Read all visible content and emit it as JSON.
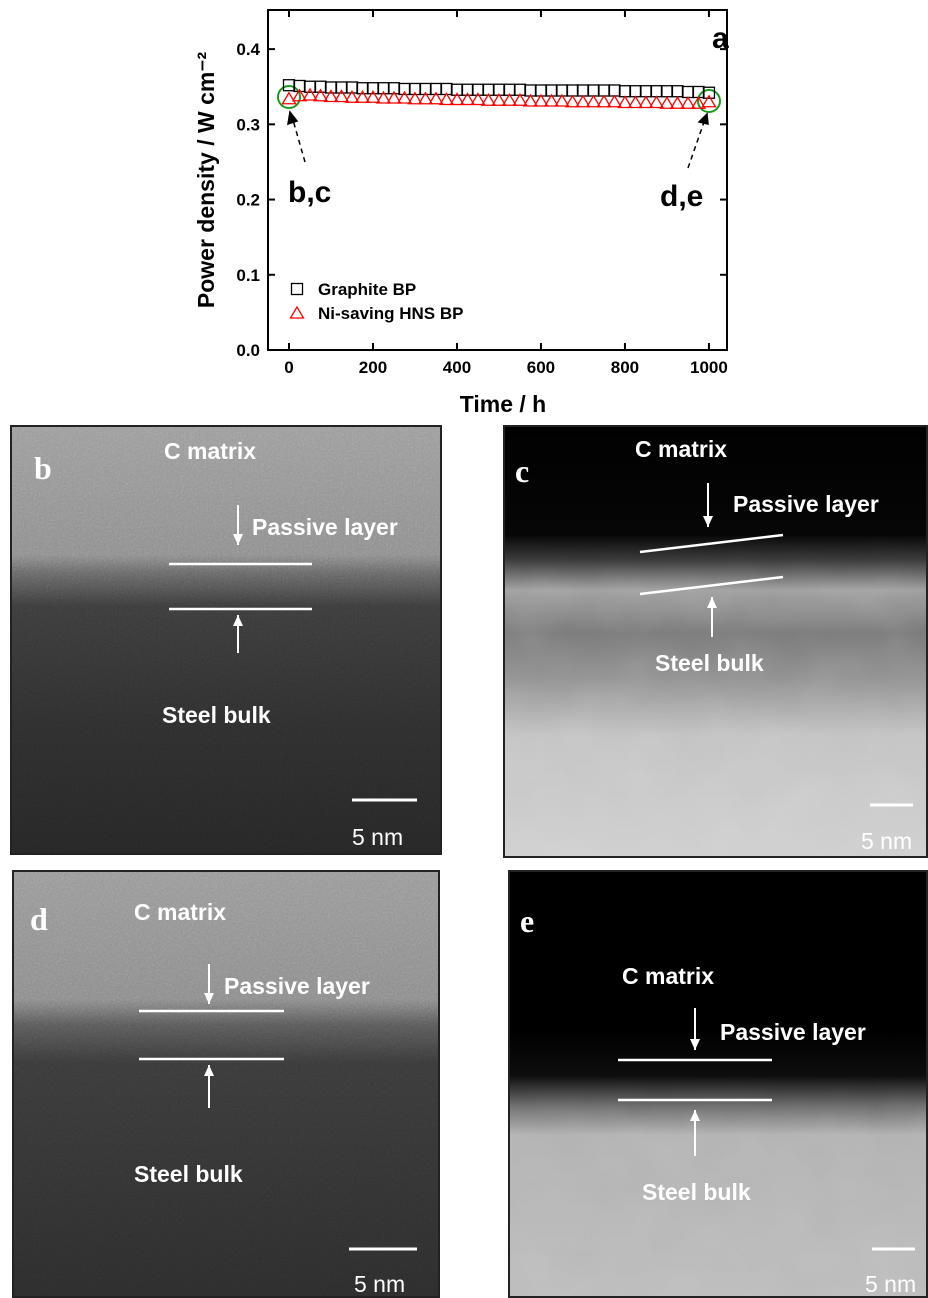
{
  "chart_data": {
    "type": "scatter",
    "x_label": "Time / h",
    "y_label": "Power density  /  W cm⁻²",
    "annotations": [
      "a",
      "b,c",
      "d,e"
    ],
    "xlim": [
      -50,
      1043
    ],
    "ylim": [
      0,
      0.452
    ],
    "xticks": [
      0,
      200,
      400,
      600,
      800,
      1000
    ],
    "yticks": [
      {
        "value": 0,
        "label": "0.0"
      },
      0.1,
      0.2,
      0.3,
      0.4
    ],
    "x": [
      0,
      25,
      50,
      75,
      100,
      125,
      150,
      175,
      200,
      225,
      250,
      275,
      300,
      325,
      350,
      375,
      400,
      425,
      450,
      475,
      500,
      525,
      550,
      575,
      600,
      625,
      650,
      675,
      700,
      725,
      750,
      775,
      800,
      825,
      850,
      875,
      900,
      925,
      950,
      975,
      1000
    ],
    "series": [
      {
        "name": "Graphite BP",
        "color": "#000000",
        "marker": "square",
        "values": [
          0.352,
          0.351,
          0.35,
          0.35,
          0.349,
          0.349,
          0.349,
          0.348,
          0.348,
          0.348,
          0.348,
          0.347,
          0.347,
          0.347,
          0.347,
          0.347,
          0.346,
          0.346,
          0.346,
          0.346,
          0.346,
          0.346,
          0.346,
          0.345,
          0.345,
          0.345,
          0.345,
          0.345,
          0.345,
          0.345,
          0.345,
          0.345,
          0.344,
          0.344,
          0.344,
          0.344,
          0.344,
          0.344,
          0.343,
          0.343,
          0.342
        ]
      },
      {
        "name": "Ni-saving HNS BP",
        "color": "#ff0000",
        "marker": "triangle",
        "values": [
          0.334,
          0.338,
          0.339,
          0.338,
          0.337,
          0.337,
          0.336,
          0.336,
          0.336,
          0.335,
          0.335,
          0.335,
          0.334,
          0.334,
          0.334,
          0.333,
          0.333,
          0.333,
          0.333,
          0.332,
          0.332,
          0.332,
          0.332,
          0.331,
          0.331,
          0.331,
          0.331,
          0.33,
          0.33,
          0.33,
          0.33,
          0.33,
          0.329,
          0.329,
          0.329,
          0.329,
          0.328,
          0.328,
          0.328,
          0.328,
          0.33
        ]
      }
    ]
  },
  "panels": [
    {
      "letter": "b",
      "top_label": "C matrix",
      "layer_label": "Passive layer",
      "bulk_label": "Steel bulk",
      "scale_label": "5 nm"
    },
    {
      "letter": "c",
      "top_label": "C matrix",
      "layer_label": "Passive layer",
      "bulk_label": "Steel bulk",
      "scale_label": "5 nm"
    },
    {
      "letter": "d",
      "top_label": "C matrix",
      "layer_label": "Passive layer",
      "bulk_label": "Steel bulk",
      "scale_label": "5 nm"
    },
    {
      "letter": "e",
      "top_label": "C matrix",
      "layer_label": "Passive layer",
      "bulk_label": "Steel bulk",
      "scale_label": "5 nm"
    }
  ]
}
